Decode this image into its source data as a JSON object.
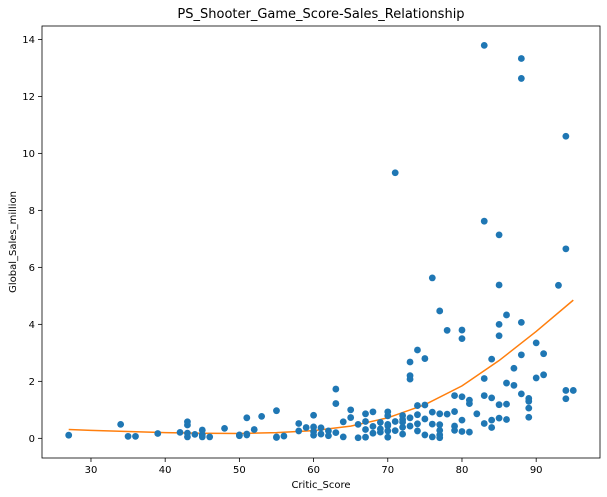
{
  "chart_data": {
    "type": "scatter",
    "title": "PS_Shooter_Game_Score-Sales_Relationship",
    "xlabel": "Critic_Score",
    "ylabel": "Global_Sales_million",
    "xlim": [
      23.4,
      98.6
    ],
    "ylim": [
      -0.69,
      14.47
    ],
    "xticks": [
      30,
      40,
      50,
      60,
      70,
      80,
      90
    ],
    "yticks": [
      0,
      2,
      4,
      6,
      8,
      10,
      12,
      14
    ],
    "grid": false,
    "colors": {
      "points": "#1f77b4",
      "trend": "#ff7f0e"
    },
    "points": [
      [
        27,
        0.11
      ],
      [
        34,
        0.49
      ],
      [
        35,
        0.07
      ],
      [
        36,
        0.07
      ],
      [
        39,
        0.17
      ],
      [
        42,
        0.21
      ],
      [
        43,
        0.18
      ],
      [
        43,
        0.47
      ],
      [
        43,
        0.58
      ],
      [
        43,
        0.05
      ],
      [
        44,
        0.14
      ],
      [
        45,
        0.29
      ],
      [
        45,
        0.13
      ],
      [
        45,
        0.05
      ],
      [
        46,
        0.05
      ],
      [
        48,
        0.35
      ],
      [
        50,
        0.12
      ],
      [
        50,
        0.09
      ],
      [
        51,
        0.72
      ],
      [
        51,
        0.12
      ],
      [
        51,
        0.15
      ],
      [
        52,
        0.31
      ],
      [
        53,
        0.77
      ],
      [
        55,
        0.97
      ],
      [
        55,
        0.03
      ],
      [
        55,
        0.05
      ],
      [
        56,
        0.08
      ],
      [
        58,
        0.52
      ],
      [
        58,
        0.26
      ],
      [
        59,
        0.38
      ],
      [
        60,
        0.4
      ],
      [
        60,
        0.81
      ],
      [
        60,
        0.24
      ],
      [
        60,
        0.11
      ],
      [
        61,
        0.37
      ],
      [
        61,
        0.15
      ],
      [
        62,
        0.26
      ],
      [
        62,
        0.09
      ],
      [
        63,
        1.73
      ],
      [
        63,
        1.22
      ],
      [
        63,
        0.2
      ],
      [
        64,
        0.58
      ],
      [
        64,
        0.05
      ],
      [
        65,
        1.0
      ],
      [
        65,
        0.73
      ],
      [
        66,
        0.49
      ],
      [
        66,
        0.02
      ],
      [
        67,
        0.86
      ],
      [
        67,
        0.59
      ],
      [
        67,
        0.31
      ],
      [
        67,
        0.04
      ],
      [
        68,
        0.93
      ],
      [
        68,
        0.42
      ],
      [
        68,
        0.18
      ],
      [
        69,
        0.56
      ],
      [
        69,
        0.33
      ],
      [
        69,
        0.22
      ],
      [
        70,
        0.93
      ],
      [
        70,
        0.79
      ],
      [
        70,
        0.49
      ],
      [
        70,
        0.44
      ],
      [
        70,
        0.26
      ],
      [
        70,
        0.04
      ],
      [
        71,
        9.32
      ],
      [
        71,
        0.59
      ],
      [
        71,
        0.27
      ],
      [
        72,
        0.8
      ],
      [
        72,
        0.66
      ],
      [
        72,
        0.57
      ],
      [
        72,
        0.39
      ],
      [
        72,
        0.15
      ],
      [
        73,
        2.68
      ],
      [
        73,
        2.2
      ],
      [
        73,
        2.08
      ],
      [
        73,
        0.72
      ],
      [
        73,
        0.43
      ],
      [
        74,
        3.1
      ],
      [
        74,
        1.15
      ],
      [
        74,
        0.83
      ],
      [
        74,
        0.51
      ],
      [
        74,
        0.26
      ],
      [
        75,
        2.8
      ],
      [
        75,
        1.17
      ],
      [
        75,
        0.68
      ],
      [
        75,
        0.12
      ],
      [
        76,
        5.63
      ],
      [
        76,
        0.92
      ],
      [
        76,
        0.5
      ],
      [
        76,
        0.05
      ],
      [
        77,
        4.47
      ],
      [
        77,
        0.86
      ],
      [
        77,
        0.48
      ],
      [
        77,
        0.28
      ],
      [
        77,
        0.12
      ],
      [
        77,
        0.02
      ],
      [
        78,
        3.79
      ],
      [
        78,
        0.85
      ],
      [
        79,
        1.5
      ],
      [
        79,
        0.94
      ],
      [
        79,
        0.43
      ],
      [
        79,
        0.28
      ],
      [
        80,
        3.8
      ],
      [
        80,
        3.5
      ],
      [
        80,
        1.46
      ],
      [
        80,
        0.64
      ],
      [
        80,
        0.24
      ],
      [
        81,
        1.34
      ],
      [
        81,
        1.22
      ],
      [
        81,
        0.22
      ],
      [
        82,
        0.86
      ],
      [
        83,
        13.79
      ],
      [
        83,
        7.62
      ],
      [
        83,
        2.1
      ],
      [
        83,
        1.5
      ],
      [
        83,
        0.52
      ],
      [
        84,
        2.78
      ],
      [
        84,
        1.42
      ],
      [
        84,
        0.64
      ],
      [
        84,
        0.38
      ],
      [
        85,
        7.14
      ],
      [
        85,
        5.38
      ],
      [
        85,
        4.0
      ],
      [
        85,
        3.6
      ],
      [
        85,
        1.18
      ],
      [
        85,
        0.71
      ],
      [
        86,
        4.33
      ],
      [
        86,
        1.94
      ],
      [
        86,
        1.2
      ],
      [
        86,
        0.66
      ],
      [
        87,
        2.46
      ],
      [
        87,
        1.86
      ],
      [
        88,
        13.33
      ],
      [
        88,
        12.63
      ],
      [
        88,
        4.07
      ],
      [
        88,
        2.93
      ],
      [
        88,
        1.56
      ],
      [
        89,
        1.4
      ],
      [
        89,
        1.3
      ],
      [
        89,
        1.06
      ],
      [
        89,
        0.74
      ],
      [
        90,
        3.35
      ],
      [
        90,
        2.12
      ],
      [
        91,
        2.97
      ],
      [
        91,
        2.23
      ],
      [
        93,
        5.37
      ],
      [
        94,
        10.6
      ],
      [
        94,
        6.65
      ],
      [
        94,
        1.68
      ],
      [
        94,
        1.39
      ],
      [
        95,
        1.68
      ]
    ],
    "trend_curve": [
      [
        27,
        0.31
      ],
      [
        30,
        0.28
      ],
      [
        35,
        0.24
      ],
      [
        40,
        0.2
      ],
      [
        45,
        0.18
      ],
      [
        50,
        0.17
      ],
      [
        55,
        0.2
      ],
      [
        60,
        0.27
      ],
      [
        65,
        0.43
      ],
      [
        70,
        0.72
      ],
      [
        75,
        1.18
      ],
      [
        80,
        1.84
      ],
      [
        85,
        2.73
      ],
      [
        90,
        3.75
      ],
      [
        95,
        4.85
      ]
    ]
  }
}
